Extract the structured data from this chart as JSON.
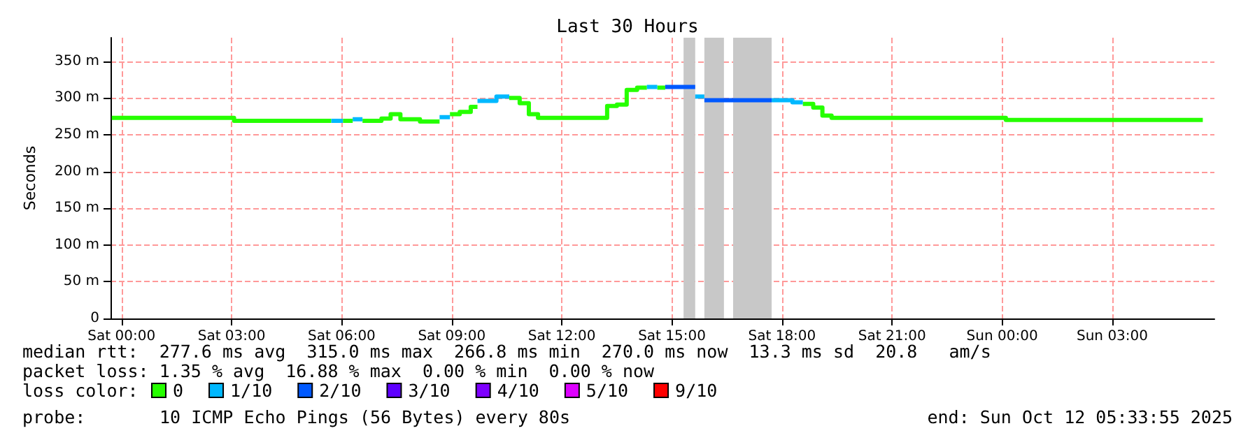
{
  "chart_data": {
    "type": "line",
    "title": "Last 30 Hours",
    "ylabel": "Seconds",
    "xlim": [
      "2025-10-10T23:42",
      "2025-10-12T05:47"
    ],
    "xticks": [
      {
        "value": "2025-10-11T00:00",
        "label": "Sat 00:00"
      },
      {
        "value": "2025-10-11T03:00",
        "label": "Sat 03:00"
      },
      {
        "value": "2025-10-11T06:00",
        "label": "Sat 06:00"
      },
      {
        "value": "2025-10-11T09:00",
        "label": "Sat 09:00"
      },
      {
        "value": "2025-10-11T12:00",
        "label": "Sat 12:00"
      },
      {
        "value": "2025-10-11T15:00",
        "label": "Sat 15:00"
      },
      {
        "value": "2025-10-11T18:00",
        "label": "Sat 18:00"
      },
      {
        "value": "2025-10-11T21:00",
        "label": "Sat 21:00"
      },
      {
        "value": "2025-10-12T00:00",
        "label": "Sun 00:00"
      },
      {
        "value": "2025-10-12T03:00",
        "label": "Sun 03:00"
      }
    ],
    "ylim": [
      0,
      382
    ],
    "yticks": [
      0,
      {
        "value": 50,
        "label": "50 m"
      },
      {
        "value": 100,
        "label": "100 m"
      },
      {
        "value": 150,
        "label": "150 m"
      },
      {
        "value": 200,
        "label": "200 m"
      },
      {
        "value": 250,
        "label": "250 m"
      },
      {
        "value": 300,
        "label": "300 m"
      },
      {
        "value": 350,
        "label": "350 m"
      }
    ],
    "grid": true,
    "legend": "bottom left",
    "line_style": "solid",
    "marker": "none",
    "series": [
      {
        "name": "0",
        "color": "#26ff00",
        "x": [
          "2025-10-10T23:44",
          "2025-10-11T03:04",
          "2025-10-11T03:04",
          "2025-10-11T05:43",
          null,
          "2025-10-11T06:02",
          "2025-10-11T06:18",
          null,
          "2025-10-11T06:34",
          "2025-10-11T07:05",
          "2025-10-11T07:05",
          "2025-10-11T07:20",
          "2025-10-11T07:20",
          "2025-10-11T07:36",
          "2025-10-11T07:36",
          "2025-10-11T08:08",
          "2025-10-11T08:08",
          "2025-10-11T08:40",
          null,
          "2025-10-11T08:57",
          "2025-10-11T09:13",
          "2025-10-11T09:13",
          "2025-10-11T09:31",
          "2025-10-11T09:31",
          "2025-10-11T09:42",
          null,
          "2025-10-11T10:34",
          "2025-10-11T10:51",
          "2025-10-11T10:51",
          "2025-10-11T11:06",
          "2025-10-11T11:06",
          "2025-10-11T11:21",
          "2025-10-11T11:21",
          "2025-10-11T13:14",
          "2025-10-11T13:14",
          "2025-10-11T13:30",
          "2025-10-11T13:30",
          "2025-10-11T13:46",
          "2025-10-11T13:46",
          "2025-10-11T14:03",
          "2025-10-11T14:03",
          "2025-10-11T14:19",
          null,
          "2025-10-11T14:36",
          "2025-10-11T14:49",
          null,
          "2025-10-11T18:34",
          "2025-10-11T18:51",
          "2025-10-11T18:51",
          "2025-10-11T19:06",
          "2025-10-11T19:06",
          "2025-10-11T19:21",
          "2025-10-11T19:21",
          "2025-10-12T00:06",
          "2025-10-12T00:06",
          "2025-10-12T05:28"
        ],
        "values": [
          273,
          273,
          269,
          269,
          null,
          269,
          269,
          null,
          269,
          269,
          272,
          272,
          278,
          278,
          271,
          271,
          268,
          268,
          null,
          278,
          278,
          281,
          281,
          288,
          288,
          null,
          300,
          300,
          293,
          293,
          278,
          278,
          273,
          273,
          289,
          289,
          291,
          291,
          311,
          311,
          314,
          314,
          null,
          314,
          314,
          null,
          292,
          292,
          287,
          287,
          276,
          276,
          273,
          273,
          270,
          270
        ]
      },
      {
        "name": "1/10",
        "color": "#00b8ff",
        "x": [
          "2025-10-11T05:43",
          "2025-10-11T06:02",
          null,
          "2025-10-11T06:18",
          "2025-10-11T06:34",
          null,
          "2025-10-11T08:40",
          "2025-10-11T08:57",
          null,
          "2025-10-11T09:42",
          "2025-10-11T10:13",
          "2025-10-11T10:13",
          "2025-10-11T10:34",
          null,
          "2025-10-11T14:19",
          "2025-10-11T14:36",
          null,
          "2025-10-11T15:38",
          "2025-10-11T15:53",
          null,
          "2025-10-11T17:43",
          "2025-10-11T18:17",
          "2025-10-11T18:17",
          "2025-10-11T18:34"
        ],
        "values": [
          269,
          269,
          null,
          271,
          271,
          null,
          274,
          274,
          null,
          296,
          296,
          302,
          302,
          null,
          315,
          315,
          null,
          302,
          302,
          null,
          297,
          297,
          294,
          294
        ]
      },
      {
        "name": "2/10",
        "color": "#0059ff",
        "x": [
          "2025-10-11T14:49",
          "2025-10-11T15:38",
          null,
          "2025-10-11T15:53",
          "2025-10-11T17:43"
        ],
        "values": [
          315,
          315,
          null,
          297,
          297
        ]
      },
      {
        "name": "3/10",
        "color": "#5e00ff"
      },
      {
        "name": "4/10",
        "color": "#7e00ff"
      },
      {
        "name": "5/10",
        "color": "#dd00ff"
      },
      {
        "name": "9/10",
        "color": "#ff0000"
      }
    ],
    "bands": [
      {
        "axis": "x",
        "from": "2025-10-11T15:19",
        "to": "2025-10-11T15:38",
        "color": "#c8c8c8"
      },
      {
        "axis": "x",
        "from": "2025-10-11T15:53",
        "to": "2025-10-11T16:25",
        "color": "#c8c8c8"
      },
      {
        "axis": "x",
        "from": "2025-10-11T16:40",
        "to": "2025-10-11T17:43",
        "color": "#c8c8c8"
      }
    ],
    "annotations": [
      "median rtt:  277.6 ms avg  315.0 ms max  266.8 ms min  270.0 ms now  13.3 ms sd  20.8   am/s",
      "packet loss: 1.35 % avg  16.88 % max  0.00 % min  0.00 % now",
      "loss color:",
      "probe:",
      "10 ICMP Echo Pings (56 Bytes) every 80s",
      "end: Sun Oct 12 05:33:55 2025"
    ]
  }
}
